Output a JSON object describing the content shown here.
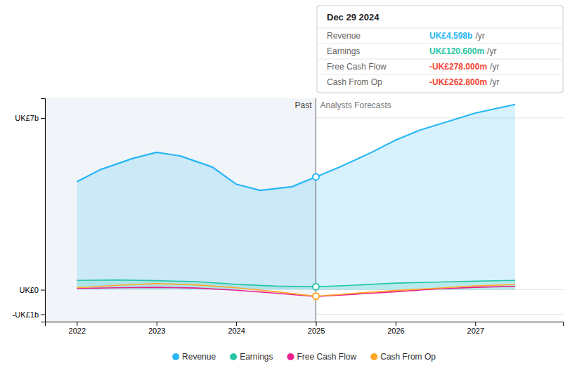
{
  "chart_data": {
    "type": "line",
    "xlim": [
      2021.6,
      2028.1
    ],
    "ylim": [
      -1300000000.0,
      7800000000.0
    ],
    "xticks": [
      2022,
      2023,
      2024,
      2025,
      2026,
      2027
    ],
    "yticks": [
      {
        "value": -1000000000.0,
        "label": "-UK£1b"
      },
      {
        "value": 0,
        "label": "UK£0"
      },
      {
        "value": 7000000000.0,
        "label": "UK£7b"
      }
    ],
    "grid": true,
    "legend": "bottom",
    "series": [
      {
        "name": "Revenue",
        "type": "area",
        "color": "#29b6f6",
        "x": [
          2022,
          2022.3,
          2022.7,
          2023,
          2023.3,
          2023.7,
          2024,
          2024.3,
          2024.7,
          2025,
          2025.3,
          2025.7,
          2026,
          2026.3,
          2026.7,
          2027,
          2027.5
        ],
        "values": [
          4400000000.0,
          4900000000.0,
          5350000000.0,
          5600000000.0,
          5450000000.0,
          5000000000.0,
          4300000000.0,
          4050000000.0,
          4200000000.0,
          4598000000.0,
          5000000000.0,
          5600000000.0,
          6100000000.0,
          6500000000.0,
          6900000000.0,
          7200000000.0,
          7550000000.0
        ]
      },
      {
        "name": "Earnings",
        "type": "area",
        "color": "#26c6a6",
        "x": [
          2022,
          2022.5,
          2023,
          2023.5,
          2024,
          2024.5,
          2025,
          2025.5,
          2026,
          2026.5,
          2027,
          2027.5
        ],
        "values": [
          380000000.0,
          400000000.0,
          370000000.0,
          330000000.0,
          220000000.0,
          150000000.0,
          120600000.0,
          190000000.0,
          270000000.0,
          310000000.0,
          350000000.0,
          380000000.0
        ]
      },
      {
        "name": "Free Cash Flow",
        "type": "line",
        "color": "#e91e8c",
        "x": [
          2022,
          2022.5,
          2023,
          2023.5,
          2024,
          2024.5,
          2025,
          2025.5,
          2026,
          2026.5,
          2027,
          2027.5
        ],
        "values": [
          50000000.0,
          80000000.0,
          100000000.0,
          70000000.0,
          -20000000.0,
          -140000000.0,
          -278000000.0,
          -180000000.0,
          -80000000.0,
          30000000.0,
          100000000.0,
          140000000.0
        ]
      },
      {
        "name": "Cash From Op",
        "type": "line",
        "color": "#ffa726",
        "x": [
          2022,
          2022.5,
          2023,
          2023.5,
          2024,
          2024.5,
          2025,
          2025.5,
          2026,
          2026.5,
          2027,
          2027.5
        ],
        "values": [
          80000000.0,
          180000000.0,
          250000000.0,
          200000000.0,
          80000000.0,
          -80000000.0,
          -262800000.0,
          -140000000.0,
          -30000000.0,
          60000000.0,
          160000000.0,
          210000000.0
        ]
      }
    ],
    "annotations": [
      {
        "type": "vline",
        "x": 2025,
        "text_left": "Past",
        "text_right": "Analysts Forecasts",
        "marked_series": [
          "Revenue",
          "Earnings",
          "Cash From Op"
        ]
      },
      {
        "type": "box",
        "title": "Dec 29 2024",
        "rows": [
          {
            "label": "Revenue",
            "value": "UK£4.598b",
            "unit": "/yr",
            "color": "#29b6f6"
          },
          {
            "label": "Earnings",
            "value": "UK£120.600m",
            "unit": "/yr",
            "color": "#26c6a6"
          },
          {
            "label": "Free Cash Flow",
            "value": "-UK£278.000m",
            "unit": "/yr",
            "color": "#f44336"
          },
          {
            "label": "Cash From Op",
            "value": "-UK£262.800m",
            "unit": "/yr",
            "color": "#f44336"
          }
        ]
      }
    ]
  }
}
